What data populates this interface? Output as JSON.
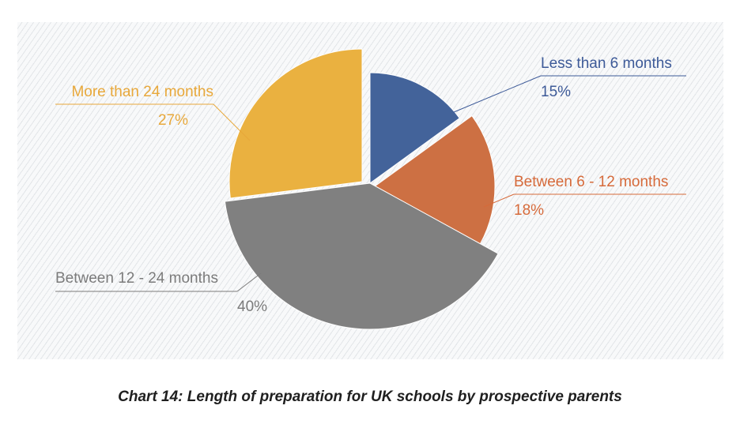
{
  "chart_data": {
    "type": "pie",
    "title": "Chart 14: Length of preparation for UK schools by prospective parents",
    "slices": [
      {
        "label": "Less than 6 months",
        "value": 15,
        "value_label": "15%",
        "color": "#43639a"
      },
      {
        "label": "Between 6 - 12 months",
        "value": 18,
        "value_label": "18%",
        "color": "#cd7043"
      },
      {
        "label": "Between 12 - 24 months",
        "value": 40,
        "value_label": "40%",
        "color": "#808080"
      },
      {
        "label": "More than 24 months",
        "value": 27,
        "value_label": "27%",
        "color": "#eab140"
      }
    ],
    "label_colors": [
      "#3d5a98",
      "#d66a3a",
      "#7b7b7b",
      "#e8a83a"
    ]
  }
}
